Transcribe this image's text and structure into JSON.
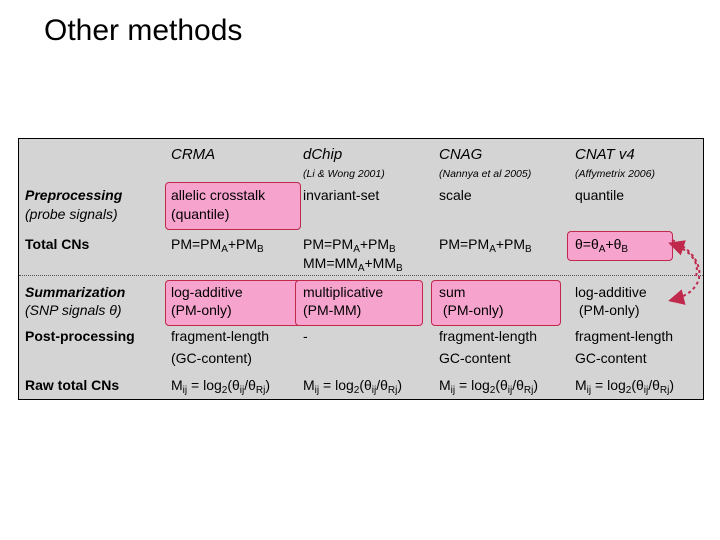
{
  "title": "Other methods",
  "columns": [
    {
      "name": "CRMA",
      "ref": ""
    },
    {
      "name": "dChip",
      "ref": "(Li & Wong 2001)"
    },
    {
      "name": "CNAG",
      "ref": "(Nannya et al 2005)"
    },
    {
      "name": "CNAT v4",
      "ref": "(Affymetrix 2006)"
    }
  ],
  "rows": {
    "preprocessing": {
      "label": "Preprocessing",
      "sublabel": "(probe signals)",
      "crma": [
        "allelic crosstalk",
        "(quantile)"
      ],
      "dchip": "invariant-set",
      "cnag": "scale",
      "cnat": "quantile"
    },
    "total_cns": {
      "label": "Total CNs",
      "crma": {
        "a": "PM=PM",
        "b": "A",
        "c": "+PM",
        "d": "B"
      },
      "dchip_line1": {
        "a": "PM=PM",
        "b": "A",
        "c": "+PM",
        "d": "B"
      },
      "dchip_line2": {
        "a": "MM=MM",
        "b": "A",
        "c": "+MM",
        "d": "B"
      },
      "cnag": {
        "a": "PM=PM",
        "b": "A",
        "c": "+PM",
        "d": "B"
      },
      "cnat": {
        "a": "θ=θ",
        "b": "A",
        "c": "+θ",
        "d": "B"
      }
    },
    "summarization": {
      "label": "Summarization",
      "sublabel": "(SNP signals θ)",
      "crma": [
        "log-additive",
        "(PM-only)"
      ],
      "dchip": [
        "multiplicative",
        "(PM-MM)"
      ],
      "cnag": [
        "sum",
        " (PM-only)"
      ],
      "cnat": [
        "log-additive",
        " (PM-only)"
      ]
    },
    "post_processing": {
      "label": "Post-processing",
      "crma": [
        "fragment-length",
        "(GC-content)"
      ],
      "dchip": "-",
      "cnag": [
        "fragment-length",
        "GC-content"
      ],
      "cnat": [
        "fragment-length",
        "GC-content"
      ]
    },
    "raw_total_cns": {
      "label": "Raw total CNs",
      "formula": {
        "m": "M",
        "ij": "ij",
        "eq": " = log",
        "two": "2",
        "open": "(θ",
        "ij2": "ij",
        "slash": "/θ",
        "rj": "Rj",
        "close": ")"
      }
    }
  },
  "colors": {
    "table_bg": "#d4d4d4",
    "highlight_fill": "#f6a3cd",
    "highlight_border": "#c0284c",
    "arrow": "#c0284c"
  }
}
